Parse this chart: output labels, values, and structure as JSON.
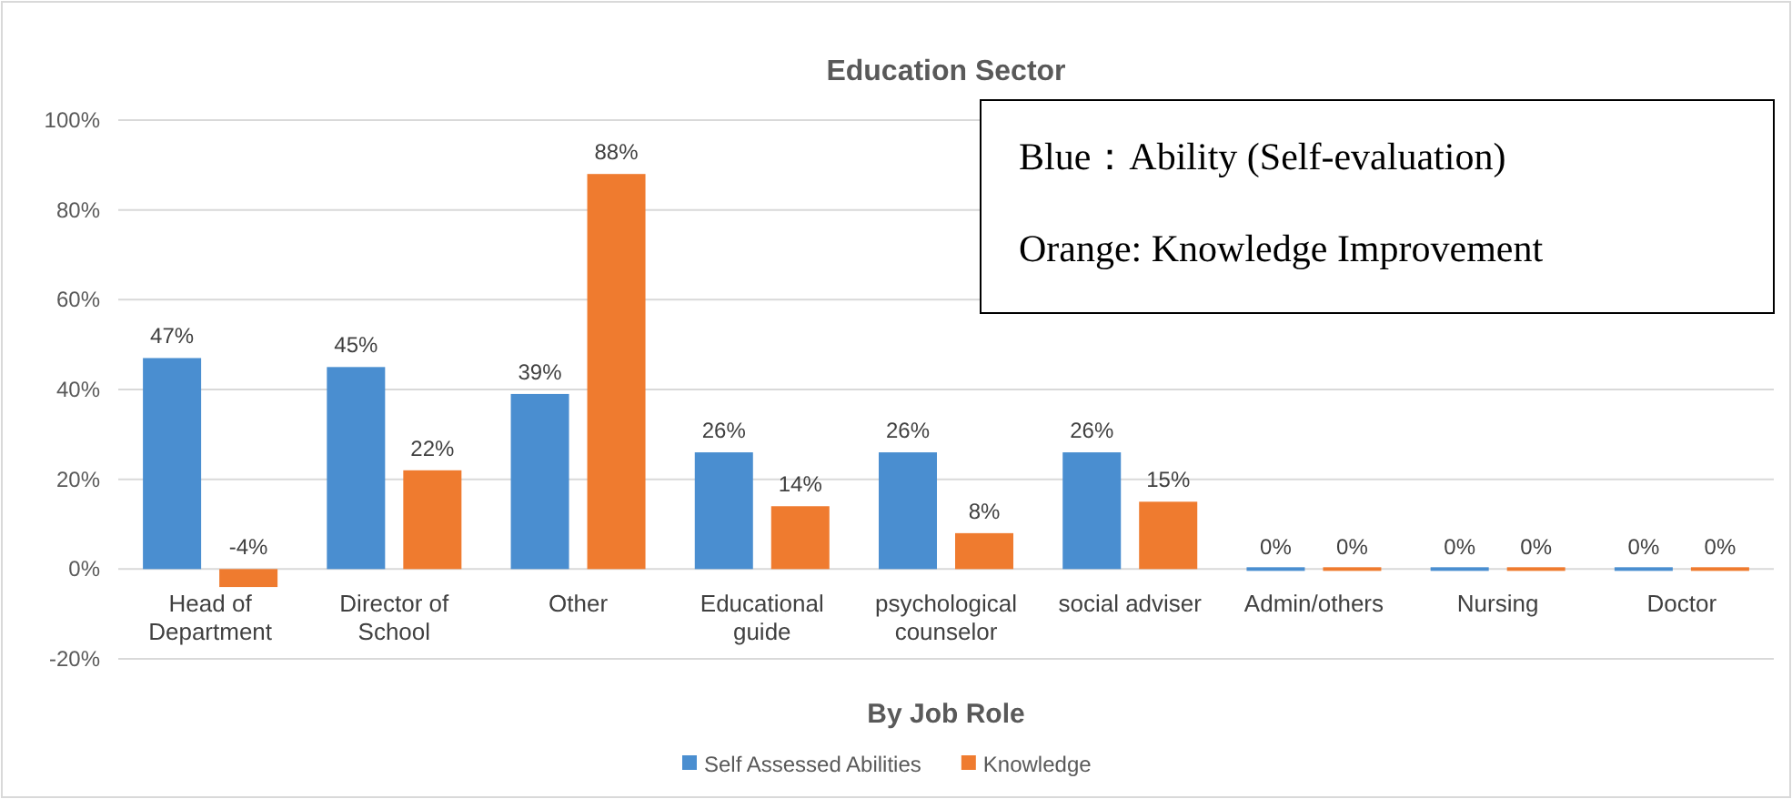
{
  "chart_data": {
    "type": "bar",
    "title": "Education Sector",
    "xlabel": "By Job Role",
    "categories": [
      "Head of\nDepartment",
      "Director of\nSchool",
      "Other",
      "Educational\nguide",
      "psychological\ncounselor",
      "social adviser",
      "Admin/others",
      "Nursing",
      "Doctor"
    ],
    "series": [
      {
        "name": "Self Assessed Abilities",
        "color": "#4a8ed0",
        "values": [
          47,
          45,
          39,
          26,
          26,
          26,
          0,
          0,
          0
        ],
        "value_labels": [
          "47%",
          "45%",
          "39%",
          "26%",
          "26%",
          "26%",
          "0%",
          "0%",
          "0%"
        ]
      },
      {
        "name": "Knowledge",
        "color": "#ef7b2f",
        "values": [
          -4,
          22,
          88,
          14,
          8,
          15,
          0,
          0,
          0
        ],
        "value_labels": [
          "-4%",
          "22%",
          "88%",
          "14%",
          "8%",
          "15%",
          "0%",
          "0%",
          "0%"
        ]
      }
    ],
    "ylim": [
      -20,
      100
    ],
    "yticks": [
      {
        "value": -20,
        "label": "-20%"
      },
      {
        "value": 0,
        "label": "0%"
      },
      {
        "value": 20,
        "label": "20%"
      },
      {
        "value": 40,
        "label": "40%"
      },
      {
        "value": 60,
        "label": "60%"
      },
      {
        "value": 80,
        "label": "80%"
      },
      {
        "value": 100,
        "label": "100%"
      }
    ],
    "grid": "y",
    "legend": "bottom",
    "annotations": [
      "Blue：Ability (Self-evaluation)\n\nOrange: Knowledge Improvement"
    ]
  }
}
